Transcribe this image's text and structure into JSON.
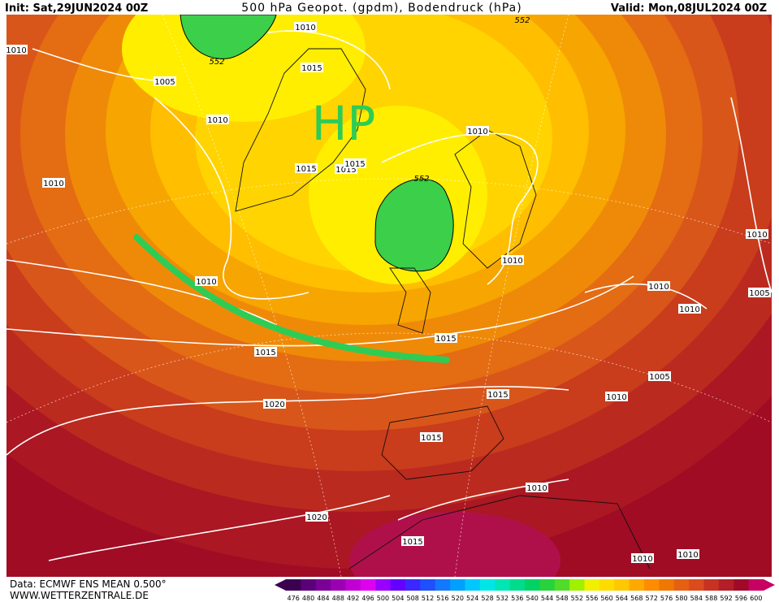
{
  "header": {
    "init": "Init: Sat,29JUN2024 00Z",
    "title": "500 hPa Geopot. (gpdm), Bodendruck (hPa)",
    "valid": "Valid: Mon,08JUL2024 00Z"
  },
  "map": {
    "highlight": "HP",
    "contour_labels": [
      "1010",
      "1005",
      "1010",
      "1015",
      "1010",
      "1010",
      "1015",
      "1015",
      "1015",
      "1010",
      "552",
      "552",
      "552",
      "1010",
      "1010",
      "1010",
      "1010",
      "1005",
      "1010",
      "1015",
      "1015",
      "1005",
      "1010",
      "1015",
      "1020",
      "1015",
      "1010",
      "1020",
      "1015",
      "1010",
      "1010"
    ]
  },
  "legend": {
    "values": [
      476,
      480,
      484,
      488,
      492,
      496,
      500,
      504,
      508,
      512,
      516,
      520,
      524,
      528,
      532,
      536,
      540,
      544,
      548,
      552,
      556,
      560,
      564,
      568,
      572,
      576,
      580,
      584,
      588,
      592,
      596,
      600
    ],
    "colors": [
      "#3c0050",
      "#5a0078",
      "#7a0096",
      "#9c00b4",
      "#c000d2",
      "#e000f0",
      "#9a00ff",
      "#6400ff",
      "#3c28ff",
      "#1e50ff",
      "#1478ff",
      "#00a0ff",
      "#00c8ff",
      "#00e6e6",
      "#00e6b4",
      "#00dc8c",
      "#00d264",
      "#28d23c",
      "#50dc28",
      "#a0f000",
      "#f0f000",
      "#ffdc00",
      "#ffc800",
      "#ffa800",
      "#ff8c00",
      "#f07800",
      "#e66014",
      "#dc4b1e",
      "#c83223",
      "#b41e28",
      "#a00a28",
      "#c80064"
    ]
  },
  "footer": {
    "data": "Data: ECMWF ENS MEAN 0.500°",
    "site": "WWW.WETTERZENTRALE.DE"
  }
}
